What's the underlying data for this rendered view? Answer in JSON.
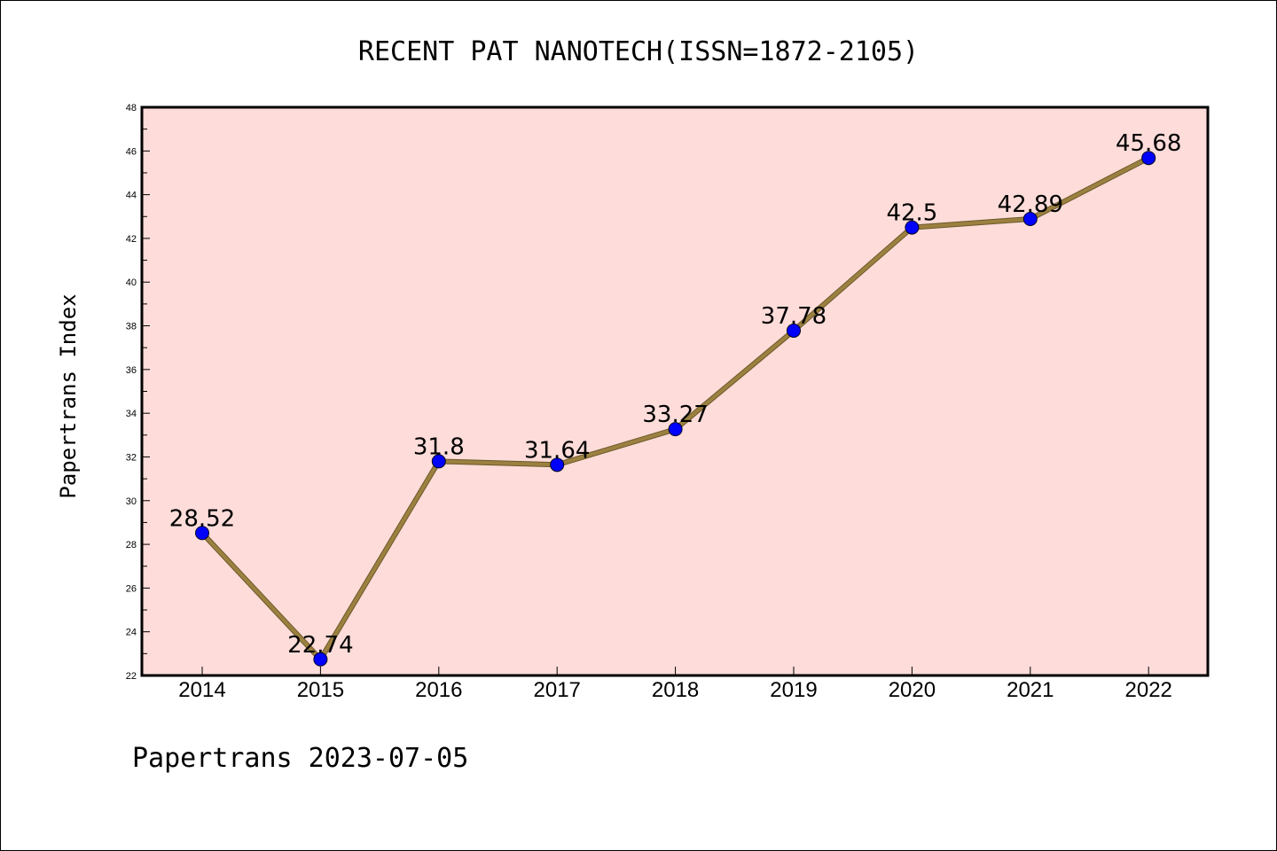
{
  "chart_data": {
    "type": "line",
    "title": "RECENT PAT NANOTECH(ISSN=1872-2105)",
    "ylabel": "Papertrans Index",
    "xlabel": "",
    "categories": [
      "2014",
      "2015",
      "2016",
      "2017",
      "2018",
      "2019",
      "2020",
      "2021",
      "2022"
    ],
    "series": [
      {
        "values": [
          28.52,
          22.74,
          31.8,
          31.64,
          33.27,
          37.78,
          42.5,
          42.89,
          45.68
        ],
        "labels": [
          "28.52",
          "22.74",
          "31.8",
          "31.64",
          "33.27",
          "37.78",
          "42.5",
          "42.89",
          "45.68"
        ]
      }
    ],
    "ylim": [
      22,
      48
    ],
    "yticks": [
      "22",
      "24",
      "26",
      "28",
      "30",
      "32",
      "34",
      "36",
      "38",
      "40",
      "42",
      "44",
      "46",
      "48"
    ],
    "grid": false,
    "legend": "none",
    "colors": {
      "plot_background": "#fddcd9",
      "line": "#9c8040",
      "marker": "#0000ff"
    }
  },
  "footer": "Papertrans 2023-07-05"
}
